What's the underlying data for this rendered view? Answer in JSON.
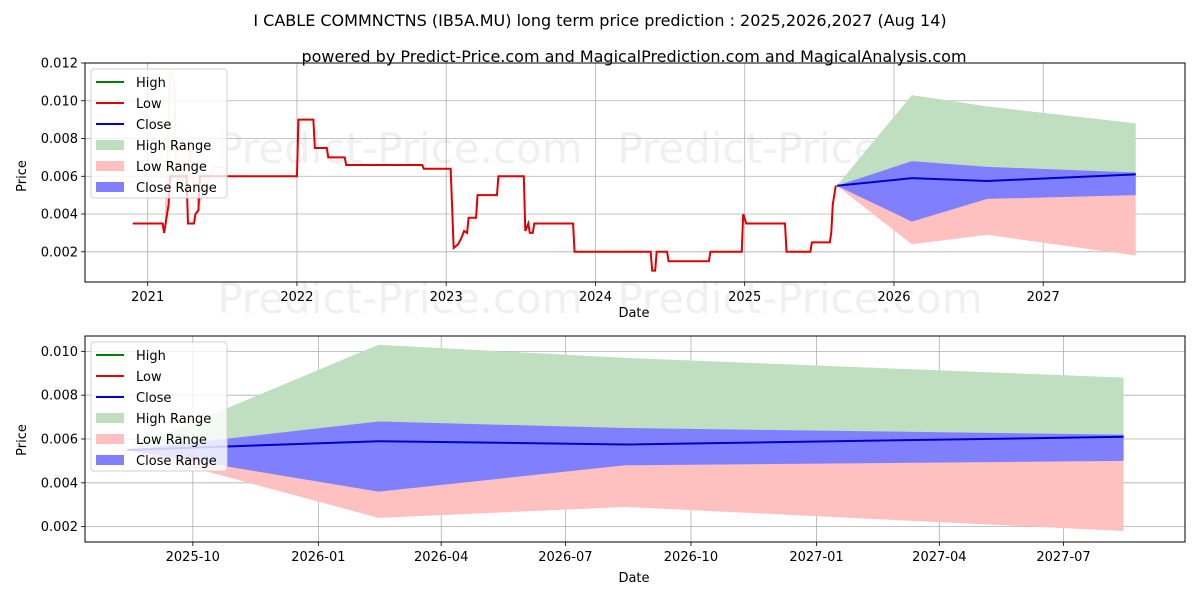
{
  "title": "I CABLE COMMNCTNS (IB5A.MU) long term price prediction : 2025,2026,2027 (Aug 14)",
  "subtitle": "powered by Predict-Price.com and MagicalPrediction.com and MagicalAnalysis.com",
  "watermark": "Predict-Price.com",
  "colors": {
    "high": "#008000",
    "low": "#e00000",
    "close": "#0000cc",
    "high_range": "#c0dfc0",
    "low_range": "#ffc0c0",
    "close_range": "#8080ff"
  },
  "legend": [
    "High",
    "Low",
    "Close",
    "High Range",
    "Low Range",
    "Close Range"
  ],
  "chart_data": [
    {
      "type": "line",
      "panel": "history-and-forecast",
      "xlabel": "Date",
      "ylabel": "Price",
      "grid": true,
      "legend_position": "upper-left",
      "xlim": [
        2020.58,
        2027.95
      ],
      "ylim": [
        0.0004,
        0.012
      ],
      "xticks": [
        {
          "v": 2021,
          "label": "2021"
        },
        {
          "v": 2022,
          "label": "2022"
        },
        {
          "v": 2023,
          "label": "2023"
        },
        {
          "v": 2024,
          "label": "2024"
        },
        {
          "v": 2025,
          "label": "2025"
        },
        {
          "v": 2026,
          "label": "2026"
        },
        {
          "v": 2027,
          "label": "2027"
        }
      ],
      "yticks": [
        {
          "v": 0.002,
          "label": "0.002"
        },
        {
          "v": 0.004,
          "label": "0.004"
        },
        {
          "v": 0.006,
          "label": "0.006"
        },
        {
          "v": 0.008,
          "label": "0.008"
        },
        {
          "v": 0.01,
          "label": "0.010"
        },
        {
          "v": 0.012,
          "label": "0.012"
        }
      ],
      "history_high_spikes": [
        [
          2021.12,
          0.0035
        ],
        [
          2021.13,
          0.0065
        ],
        [
          2021.15,
          0.0115
        ],
        [
          2021.18,
          0.011
        ],
        [
          2021.19,
          0.006
        ],
        [
          2021.27,
          0.006
        ],
        [
          2021.28,
          0.008
        ],
        [
          2021.3,
          0.006
        ],
        [
          2021.34,
          0.0045
        ],
        [
          2021.45,
          0.0065
        ],
        [
          2021.51,
          0.0065
        ],
        [
          2021.52,
          0.006
        ]
      ],
      "history_low": [
        [
          2020.9,
          0.0035
        ],
        [
          2021.1,
          0.0035
        ],
        [
          2021.11,
          0.003
        ],
        [
          2021.12,
          0.0035
        ],
        [
          2021.14,
          0.0045
        ],
        [
          2021.15,
          0.006
        ],
        [
          2021.26,
          0.006
        ],
        [
          2021.27,
          0.0035
        ],
        [
          2021.31,
          0.0035
        ],
        [
          2021.32,
          0.004
        ],
        [
          2021.34,
          0.0042
        ],
        [
          2021.35,
          0.006
        ],
        [
          2022.0,
          0.006
        ],
        [
          2022.01,
          0.009
        ],
        [
          2022.11,
          0.009
        ],
        [
          2022.12,
          0.0075
        ],
        [
          2022.2,
          0.0075
        ],
        [
          2022.21,
          0.007
        ],
        [
          2022.32,
          0.007
        ],
        [
          2022.33,
          0.0066
        ],
        [
          2022.84,
          0.0066
        ],
        [
          2022.85,
          0.0064
        ],
        [
          2023.03,
          0.0064
        ],
        [
          2023.05,
          0.0022
        ],
        [
          2023.08,
          0.0024
        ],
        [
          2023.1,
          0.0027
        ],
        [
          2023.12,
          0.0031
        ],
        [
          2023.14,
          0.003
        ],
        [
          2023.15,
          0.0038
        ],
        [
          2023.2,
          0.0038
        ],
        [
          2023.21,
          0.005
        ],
        [
          2023.34,
          0.005
        ],
        [
          2023.35,
          0.006
        ],
        [
          2023.52,
          0.006
        ],
        [
          2023.53,
          0.0031
        ],
        [
          2023.55,
          0.0035
        ],
        [
          2023.56,
          0.003
        ],
        [
          2023.58,
          0.003
        ],
        [
          2023.59,
          0.0035
        ],
        [
          2023.85,
          0.0035
        ],
        [
          2023.86,
          0.002
        ],
        [
          2024.37,
          0.002
        ],
        [
          2024.38,
          0.001
        ],
        [
          2024.4,
          0.001
        ],
        [
          2024.41,
          0.002
        ],
        [
          2024.48,
          0.002
        ],
        [
          2024.49,
          0.0015
        ],
        [
          2024.76,
          0.0015
        ],
        [
          2024.77,
          0.002
        ],
        [
          2024.98,
          0.002
        ],
        [
          2024.99,
          0.004
        ],
        [
          2025.01,
          0.0035
        ],
        [
          2025.27,
          0.0035
        ],
        [
          2025.28,
          0.002
        ],
        [
          2025.44,
          0.002
        ],
        [
          2025.45,
          0.0025
        ],
        [
          2025.57,
          0.0025
        ],
        [
          2025.58,
          0.003
        ],
        [
          2025.59,
          0.0045
        ],
        [
          2025.61,
          0.0055
        ]
      ],
      "forecast": {
        "x": [
          2025.617,
          2026.12,
          2026.625,
          2027.62
        ],
        "close": [
          0.0055,
          0.0059,
          0.00575,
          0.0061
        ],
        "high_upper": [
          0.0055,
          0.0103,
          0.0097,
          0.0088
        ],
        "close_upper": [
          0.0055,
          0.0068,
          0.0065,
          0.0062
        ],
        "close_lower": [
          0.0055,
          0.0036,
          0.0048,
          0.005
        ],
        "low_lower": [
          0.0055,
          0.0024,
          0.0029,
          0.0018
        ]
      }
    },
    {
      "type": "line",
      "panel": "forecast-zoom",
      "xlabel": "Date",
      "ylabel": "Price",
      "grid": true,
      "legend_position": "upper-left",
      "xlim": [
        "2025-07-14",
        "2027-09-28"
      ],
      "ylim": [
        0.0013,
        0.0107
      ],
      "xticks": [
        {
          "v": "2025-10-01",
          "label": "2025-10"
        },
        {
          "v": "2026-01-01",
          "label": "2026-01"
        },
        {
          "v": "2026-04-01",
          "label": "2026-04"
        },
        {
          "v": "2026-07-01",
          "label": "2026-07"
        },
        {
          "v": "2026-10-01",
          "label": "2026-10"
        },
        {
          "v": "2027-01-01",
          "label": "2027-01"
        },
        {
          "v": "2027-04-01",
          "label": "2027-04"
        },
        {
          "v": "2027-07-01",
          "label": "2027-07"
        }
      ],
      "yticks": [
        {
          "v": 0.002,
          "label": "0.002"
        },
        {
          "v": 0.004,
          "label": "0.004"
        },
        {
          "v": 0.006,
          "label": "0.006"
        },
        {
          "v": 0.008,
          "label": "0.008"
        },
        {
          "v": 0.01,
          "label": "0.010"
        }
      ],
      "forecast": {
        "x": [
          "2025-08-14",
          "2026-02-14",
          "2026-08-14",
          "2027-08-14"
        ],
        "close": [
          0.0055,
          0.0059,
          0.00575,
          0.0061
        ],
        "high_upper": [
          0.0055,
          0.0103,
          0.0097,
          0.0088
        ],
        "close_upper": [
          0.0055,
          0.0068,
          0.0065,
          0.0062
        ],
        "close_lower": [
          0.0055,
          0.0036,
          0.0048,
          0.005
        ],
        "low_lower": [
          0.0055,
          0.0024,
          0.0029,
          0.0018
        ]
      }
    }
  ]
}
